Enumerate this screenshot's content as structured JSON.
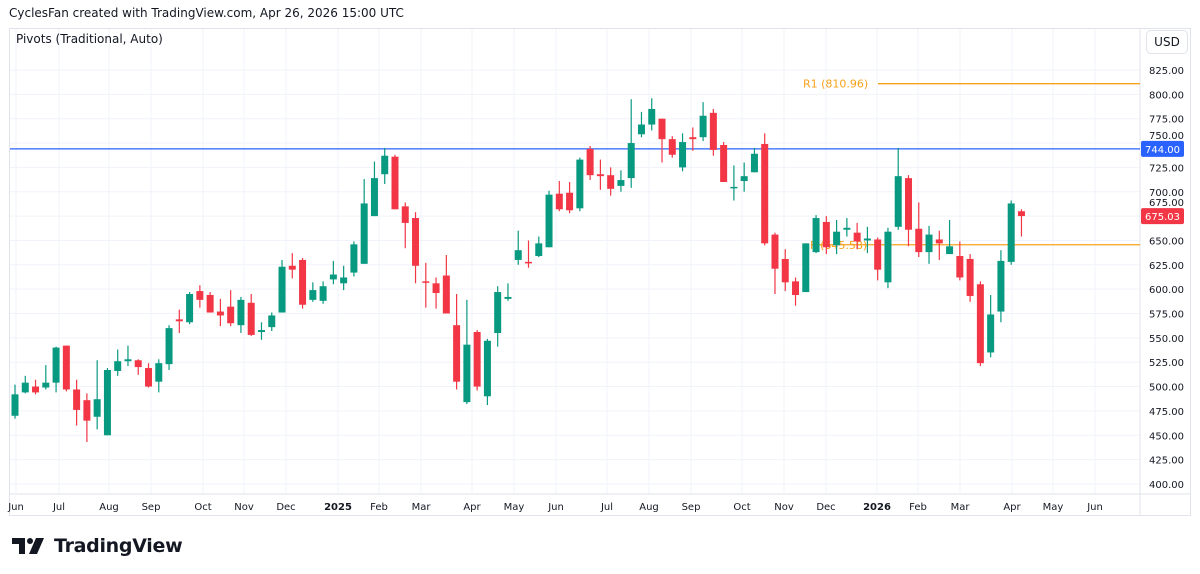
{
  "header": {
    "caption": "CyclesFan created with TradingView.com, Apr 26, 2026 15:00 UTC"
  },
  "legend": {
    "indicator": "Pivots (Traditional, Auto)"
  },
  "currency_button": "USD",
  "brand": {
    "logo_text": "TradingView"
  },
  "colors": {
    "up": "#089981",
    "down": "#f23645",
    "pivot": "#f7a21b",
    "hline": "#2962ff",
    "grid": "#f0f3fa"
  },
  "chart_data": {
    "type": "candlestick",
    "interval": "weekly",
    "ylim": [
      395,
      840
    ],
    "grid": true,
    "y_ticks": [
      "825.00",
      "800.00",
      "775.00",
      "750.00",
      "725.00",
      "700.00",
      "675.00",
      "650.00",
      "625.00",
      "600.00",
      "575.00",
      "550.00",
      "525.00",
      "500.00",
      "475.00",
      "450.00",
      "425.00",
      "400.00"
    ],
    "x_ticks": [
      "Jun",
      "Jul",
      "Aug",
      "Sep",
      "Oct",
      "Nov",
      "Dec",
      "2025",
      "Feb",
      "Mar",
      "Apr",
      "May",
      "Jun",
      "Jul",
      "Aug",
      "Sep",
      "Oct",
      "Nov",
      "Dec",
      "2026",
      "Feb",
      "Mar",
      "Apr",
      "May",
      "Jun"
    ],
    "ohlc": [
      [
        470,
        502,
        467,
        492
      ],
      [
        494,
        511,
        493,
        504
      ],
      [
        500,
        507,
        492,
        494
      ],
      [
        499,
        522,
        497,
        504
      ],
      [
        504,
        541,
        494,
        540
      ],
      [
        542,
        542,
        495,
        497
      ],
      [
        497,
        507,
        460,
        476
      ],
      [
        486,
        493,
        443,
        465
      ],
      [
        469,
        527,
        456,
        487
      ],
      [
        450,
        519,
        450,
        517
      ],
      [
        516,
        538,
        511,
        526
      ],
      [
        526,
        542,
        521,
        528
      ],
      [
        527,
        528,
        512,
        520
      ],
      [
        519,
        524,
        499,
        500
      ],
      [
        505,
        528,
        494,
        524
      ],
      [
        523,
        563,
        517,
        560
      ],
      [
        569,
        579,
        555,
        567
      ],
      [
        566,
        597,
        564,
        595
      ],
      [
        598,
        604,
        581,
        589
      ],
      [
        594,
        597,
        576,
        576
      ],
      [
        577,
        590,
        562,
        573
      ],
      [
        582,
        599,
        562,
        565
      ],
      [
        563,
        592,
        555,
        589
      ],
      [
        586,
        595,
        552,
        553
      ],
      [
        556,
        566,
        548,
        558
      ],
      [
        561,
        576,
        557,
        573
      ],
      [
        576,
        630,
        576,
        623
      ],
      [
        624,
        637,
        611,
        620
      ],
      [
        630,
        632,
        580,
        584
      ],
      [
        589,
        607,
        587,
        599
      ],
      [
        588,
        608,
        585,
        603
      ],
      [
        610,
        629,
        605,
        615
      ],
      [
        606,
        624,
        599,
        612
      ],
      [
        617,
        649,
        613,
        646
      ],
      [
        626,
        713,
        626,
        688
      ],
      [
        675,
        731,
        675,
        714
      ],
      [
        718,
        745,
        708,
        737
      ],
      [
        736,
        738,
        682,
        682
      ],
      [
        685,
        689,
        642,
        668
      ],
      [
        673,
        679,
        606,
        624
      ],
      [
        608,
        627,
        581,
        607
      ],
      [
        606,
        612,
        580,
        596
      ],
      [
        614,
        635,
        575,
        575
      ],
      [
        563,
        595,
        497,
        505
      ],
      [
        484,
        589,
        482,
        543
      ],
      [
        556,
        558,
        496,
        500
      ],
      [
        490,
        549,
        481,
        547
      ],
      [
        555,
        603,
        541,
        597
      ],
      [
        590,
        606,
        588,
        592
      ],
      [
        630,
        660,
        625,
        640
      ],
      [
        628,
        650,
        622,
        627
      ],
      [
        634,
        654,
        633,
        647
      ],
      [
        643,
        701,
        643,
        697
      ],
      [
        698,
        711,
        680,
        682
      ],
      [
        699,
        710,
        678,
        681
      ],
      [
        683,
        735,
        680,
        733
      ],
      [
        744,
        747,
        712,
        717
      ],
      [
        718,
        733,
        702,
        716
      ],
      [
        717,
        725,
        696,
        703
      ],
      [
        706,
        722,
        700,
        712
      ],
      [
        714,
        795,
        704,
        750
      ],
      [
        759,
        782,
        756,
        769
      ],
      [
        769,
        796,
        763,
        785
      ],
      [
        775,
        775,
        730,
        754
      ],
      [
        754,
        757,
        735,
        738
      ],
      [
        725,
        760,
        721,
        751
      ],
      [
        756,
        766,
        742,
        754
      ],
      [
        756,
        792,
        752,
        778
      ],
      [
        781,
        785,
        737,
        743
      ],
      [
        748,
        751,
        710,
        710
      ],
      [
        704,
        727,
        691,
        705
      ],
      [
        711,
        730,
        700,
        716
      ],
      [
        720,
        745,
        720,
        739
      ],
      [
        749,
        760,
        645,
        647
      ],
      [
        656,
        658,
        595,
        621
      ],
      [
        631,
        641,
        598,
        607
      ],
      [
        608,
        612,
        583,
        594
      ],
      [
        597,
        647,
        597,
        647
      ],
      [
        638,
        676,
        637,
        673
      ],
      [
        669,
        675,
        636,
        643
      ],
      [
        645,
        671,
        636,
        659
      ],
      [
        661,
        673,
        654,
        663
      ],
      [
        658,
        668,
        641,
        649
      ],
      [
        650,
        664,
        637,
        652
      ],
      [
        651,
        653,
        609,
        620
      ],
      [
        607,
        663,
        601,
        659
      ],
      [
        664,
        745,
        661,
        716
      ],
      [
        714,
        717,
        644,
        661
      ],
      [
        662,
        689,
        633,
        638
      ],
      [
        638,
        665,
        626,
        656
      ],
      [
        651,
        660,
        630,
        647
      ],
      [
        636,
        671,
        636,
        644
      ],
      [
        634,
        649,
        609,
        612
      ],
      [
        631,
        636,
        587,
        593
      ],
      [
        605,
        608,
        521,
        524
      ],
      [
        535,
        594,
        530,
        574
      ],
      [
        577,
        640,
        566,
        629
      ],
      [
        628,
        691,
        625,
        688
      ],
      [
        680,
        682,
        654,
        675.03
      ]
    ],
    "last_price_label": "675.03",
    "horizontal_line": {
      "value": 744.0,
      "label": "744.00"
    },
    "pivots": [
      {
        "name": "R1",
        "value": 810.96,
        "label": "R1 (810.96)"
      },
      {
        "name": "P",
        "value": 645.58,
        "label": "P (645.58)"
      }
    ]
  }
}
